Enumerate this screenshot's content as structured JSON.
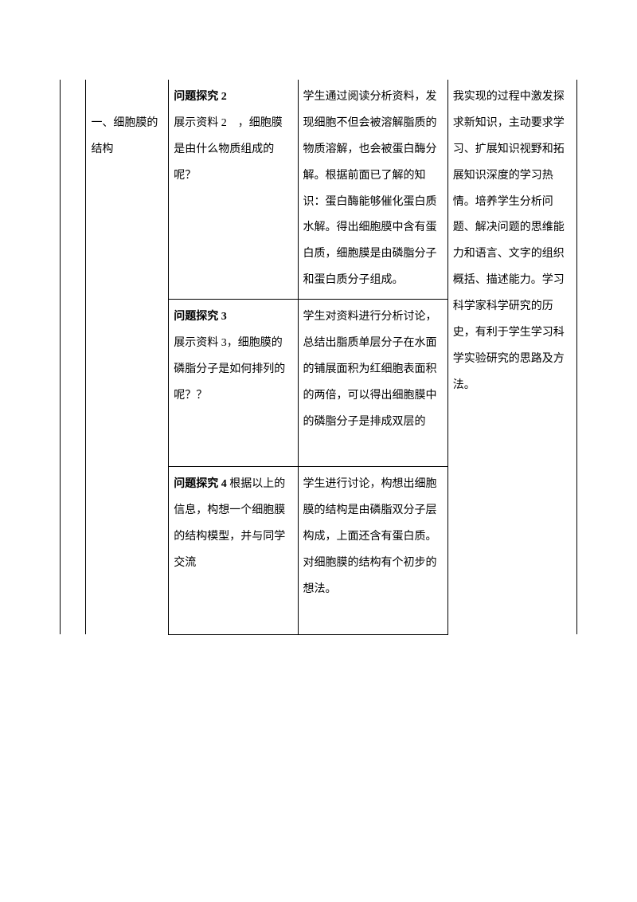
{
  "table": {
    "col0": "",
    "col1": "一、细胞膜的结构",
    "col4": "我实现的过程中激发探求新知识，主动要求学习、扩展知识视野和拓展知识深度的学习热情。培养学生分析问题、解决问题的思维能力和语言、文字的组织概括、描述能力。学习科学家科学研究的历史，有利于学生学习科学实验研究的思路及方法。",
    "rows": [
      {
        "q_title": "问题探究 2",
        "q_body": "展示资料 2　，细胞膜是由什么物质组成的呢？",
        "a": "学生通过阅读分析资料，发现细胞不但会被溶解脂质的物质溶解，也会被蛋白酶分解。根据前面已了解的知识：蛋白酶能够催化蛋白质水解。得出细胞膜中含有蛋白质，细胞膜是由磷脂分子和蛋白质分子组成。"
      },
      {
        "q_title": "问题探究 3",
        "q_body": "展示资料 3，细胞膜的磷脂分子是如何排列的呢？？",
        "a": "学生对资料进行分析讨论，总结出脂质单层分子在水面的铺展面积为红细胞表面积的两倍，可以得出细胞膜中的磷脂分子是排成双层的"
      },
      {
        "q_title_inline": "问题探究 4",
        "q_body_inline": " 根据以上的信息，构想一个细胞膜的结构模型，并与同学交流",
        "a": "学生进行讨论，构想出细胞膜的结构是由磷脂双分子层构成，上面还含有蛋白质。对细胞膜的结构有个初步的想法。"
      }
    ]
  }
}
